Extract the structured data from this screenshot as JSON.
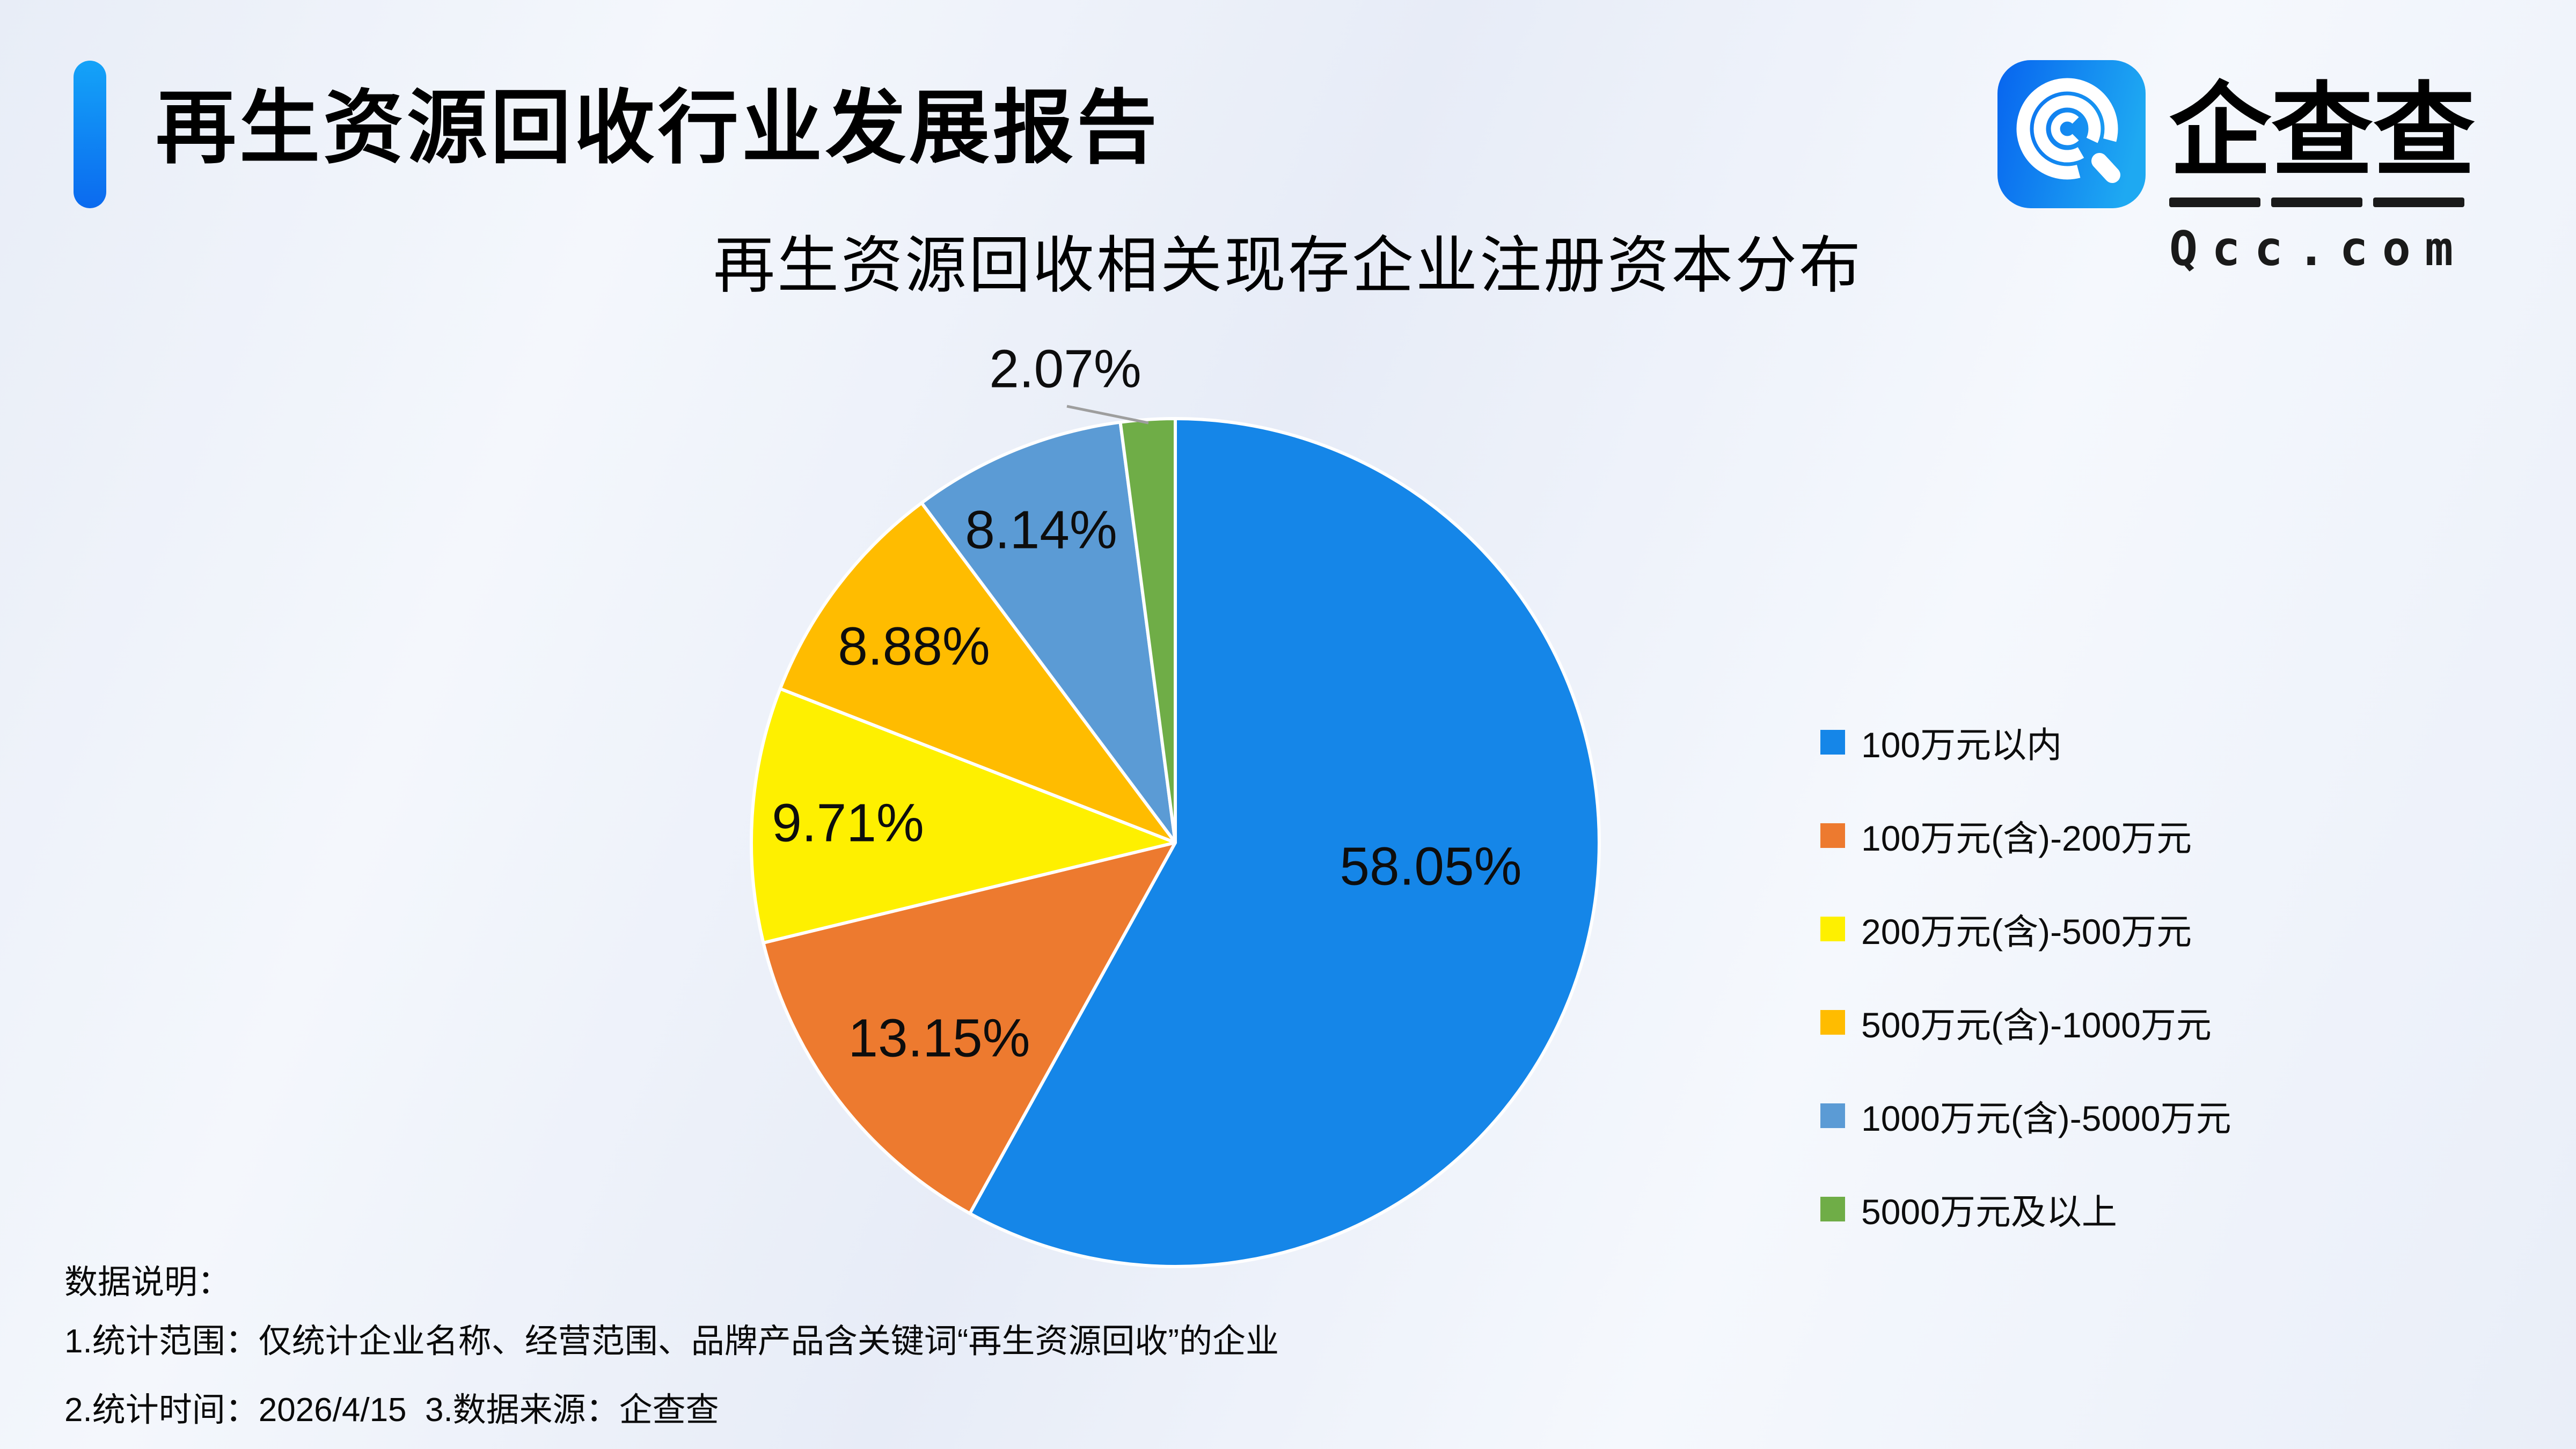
{
  "header": {
    "title": "再生资源回收行业发展报告",
    "logo": {
      "name": "企查查",
      "domain": "Qcc.com"
    }
  },
  "theme": {
    "accent_blue": "#0b6bf0",
    "leader_line": "#9e9e9e",
    "background": "#edf1f9"
  },
  "chart_data": {
    "type": "pie",
    "title": "再生资源回收相关现存企业注册资本分布",
    "legend_position": "right",
    "start_angle_deg": 0,
    "direction": "clockwise",
    "categories": [
      "100万元以内",
      "100万元(含)-200万元",
      "200万元(含)-500万元",
      "500万元(含)-1000万元",
      "1000万元(含)-5000万元",
      "5000万元及以上"
    ],
    "values": [
      58.05,
      13.15,
      9.71,
      8.88,
      8.14,
      2.07
    ],
    "value_labels": [
      "58.05%",
      "13.15%",
      "9.71%",
      "8.88%",
      "8.14%",
      "2.07%"
    ],
    "colors": [
      "#1586e8",
      "#ed7a2f",
      "#fef000",
      "#ffbc00",
      "#5b9bd5",
      "#6fad47"
    ]
  },
  "notes": {
    "heading": "数据说明：",
    "line1": "1.统计范围：仅统计企业名称、经营范围、品牌产品含关键词“再生资源回收”的企业",
    "line2": "2.统计时间：2026/4/15  3.数据来源：企查查"
  }
}
